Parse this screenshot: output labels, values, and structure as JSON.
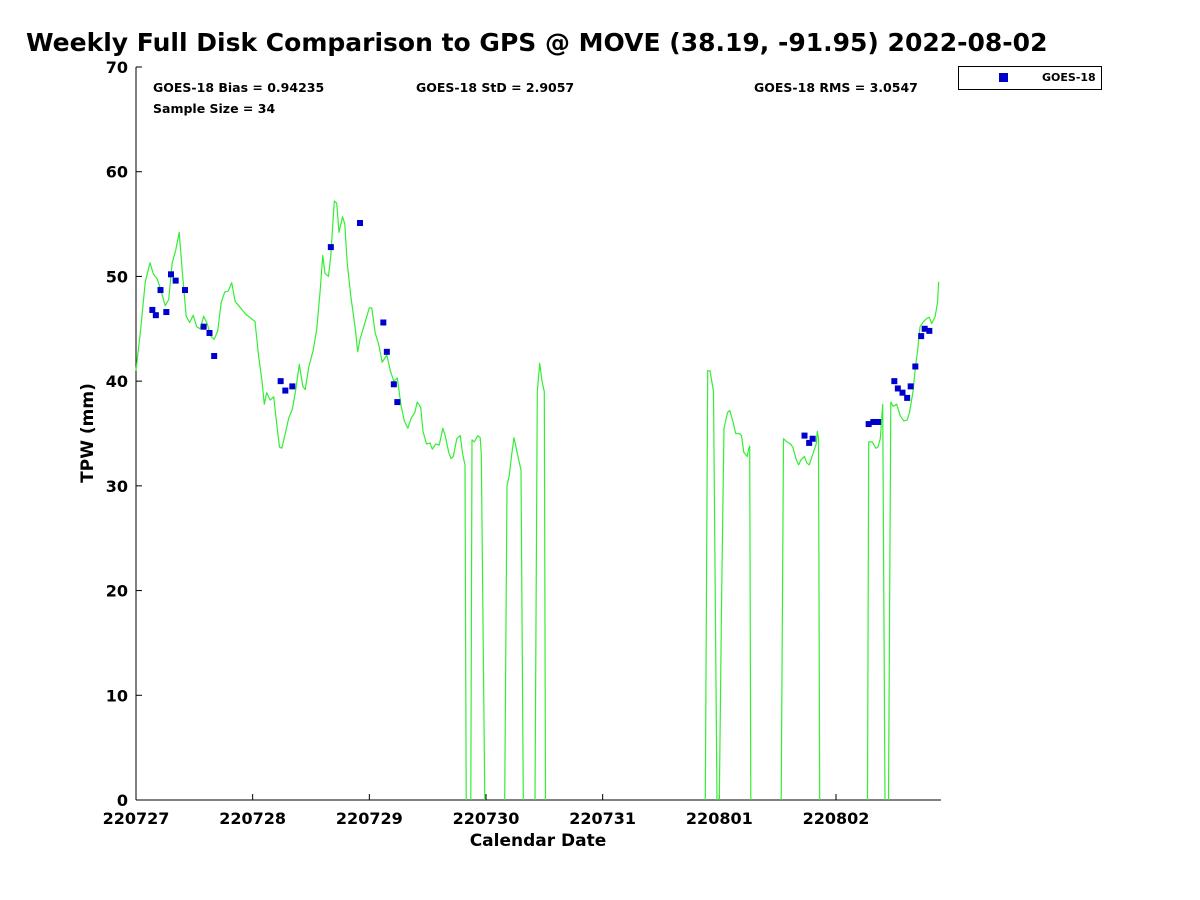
{
  "chart_data": {
    "type": "scatter",
    "title": "Weekly Full Disk Comparison to GPS @ MOVE (38.19, -91.95) 2022-08-02",
    "xlabel": "Calendar Date",
    "ylabel": "TPW (mm)",
    "xlim": [
      0,
      6.9
    ],
    "ylim": [
      0,
      70
    ],
    "x_ticks": [
      {
        "x": 0,
        "label": "220727"
      },
      {
        "x": 1,
        "label": "220728"
      },
      {
        "x": 2,
        "label": "220729"
      },
      {
        "x": 3,
        "label": "220730"
      },
      {
        "x": 4,
        "label": "220731"
      },
      {
        "x": 5,
        "label": "220801"
      },
      {
        "x": 6,
        "label": "220802"
      }
    ],
    "y_ticks": [
      0,
      10,
      20,
      30,
      40,
      50,
      60,
      70
    ],
    "stats": {
      "bias": "GOES-18 Bias = 0.94235",
      "std": "GOES-18 StD = 2.9057",
      "rms": "GOES-18 RMS = 3.0547",
      "sample": "Sample Size = 34"
    },
    "legend": {
      "position": "top-right, outside plot",
      "entries": [
        "GOES-18"
      ]
    },
    "colors": {
      "goes": "#0000cc",
      "gps": "#33ee33"
    },
    "series": [
      {
        "name": "GOES-18",
        "kind": "scatter",
        "points": [
          [
            0.14,
            46.8
          ],
          [
            0.17,
            46.3
          ],
          [
            0.21,
            48.7
          ],
          [
            0.26,
            46.6
          ],
          [
            0.3,
            50.2
          ],
          [
            0.34,
            49.6
          ],
          [
            0.42,
            48.7
          ],
          [
            0.58,
            45.2
          ],
          [
            0.63,
            44.6
          ],
          [
            0.67,
            42.4
          ],
          [
            1.24,
            40.0
          ],
          [
            1.28,
            39.1
          ],
          [
            1.34,
            39.5
          ],
          [
            1.67,
            52.8
          ],
          [
            1.92,
            55.1
          ],
          [
            2.12,
            45.6
          ],
          [
            2.15,
            42.8
          ],
          [
            2.21,
            39.7
          ],
          [
            2.24,
            38.0
          ],
          [
            5.73,
            34.8
          ],
          [
            5.77,
            34.1
          ],
          [
            5.8,
            34.5
          ],
          [
            6.28,
            35.9
          ],
          [
            6.32,
            36.1
          ],
          [
            6.36,
            36.1
          ],
          [
            6.5,
            40.0
          ],
          [
            6.53,
            39.3
          ],
          [
            6.57,
            38.9
          ],
          [
            6.61,
            38.4
          ],
          [
            6.64,
            39.5
          ],
          [
            6.68,
            41.4
          ],
          [
            6.73,
            44.3
          ],
          [
            6.76,
            45.0
          ],
          [
            6.8,
            44.8
          ]
        ]
      },
      {
        "kind": "line",
        "segments": [
          [
            [
              0.0,
              41.0
            ],
            [
              0.04,
              45.0
            ],
            [
              0.08,
              49.5
            ],
            [
              0.12,
              51.3
            ],
            [
              0.15,
              50.2
            ],
            [
              0.18,
              49.8
            ],
            [
              0.21,
              48.8
            ],
            [
              0.25,
              47.2
            ],
            [
              0.28,
              47.8
            ],
            [
              0.31,
              51.3
            ],
            [
              0.34,
              52.5
            ],
            [
              0.37,
              54.2
            ],
            [
              0.4,
              50.0
            ],
            [
              0.43,
              46.2
            ],
            [
              0.46,
              45.6
            ],
            [
              0.49,
              46.3
            ],
            [
              0.52,
              45.2
            ],
            [
              0.55,
              45.0
            ],
            [
              0.58,
              46.2
            ],
            [
              0.61,
              45.5
            ],
            [
              0.64,
              44.3
            ],
            [
              0.67,
              44.0
            ],
            [
              0.7,
              44.8
            ],
            [
              0.73,
              47.5
            ],
            [
              0.76,
              48.5
            ],
            [
              0.79,
              48.6
            ],
            [
              0.82,
              49.4
            ],
            [
              0.85,
              47.6
            ],
            [
              0.88,
              47.2
            ],
            [
              0.94,
              46.4
            ],
            [
              1.02,
              45.7
            ],
            [
              1.05,
              42.5
            ],
            [
              1.08,
              40.0
            ],
            [
              1.1,
              37.8
            ],
            [
              1.12,
              38.9
            ],
            [
              1.15,
              38.2
            ],
            [
              1.18,
              38.5
            ],
            [
              1.2,
              36.5
            ],
            [
              1.23,
              33.7
            ],
            [
              1.25,
              33.6
            ],
            [
              1.28,
              35.0
            ],
            [
              1.31,
              36.5
            ],
            [
              1.34,
              37.3
            ],
            [
              1.37,
              39.2
            ],
            [
              1.4,
              41.6
            ],
            [
              1.43,
              39.5
            ],
            [
              1.45,
              39.2
            ],
            [
              1.48,
              41.3
            ],
            [
              1.52,
              43.0
            ],
            [
              1.55,
              45.0
            ],
            [
              1.58,
              48.8
            ],
            [
              1.6,
              52.0
            ],
            [
              1.62,
              50.3
            ],
            [
              1.65,
              50.0
            ],
            [
              1.67,
              52.0
            ],
            [
              1.7,
              57.2
            ],
            [
              1.72,
              57.0
            ],
            [
              1.74,
              54.2
            ],
            [
              1.77,
              55.7
            ],
            [
              1.79,
              55.0
            ],
            [
              1.81,
              51.3
            ],
            [
              1.84,
              48.2
            ],
            [
              1.88,
              45.0
            ],
            [
              1.9,
              42.8
            ],
            [
              1.92,
              44.0
            ],
            [
              1.96,
              45.5
            ],
            [
              2.0,
              47.0
            ],
            [
              2.02,
              47.0
            ],
            [
              2.05,
              44.6
            ],
            [
              2.08,
              43.5
            ],
            [
              2.11,
              41.8
            ],
            [
              2.15,
              42.5
            ],
            [
              2.18,
              41.0
            ],
            [
              2.21,
              40.0
            ],
            [
              2.24,
              40.3
            ],
            [
              2.27,
              37.8
            ],
            [
              2.3,
              36.2
            ],
            [
              2.33,
              35.5
            ],
            [
              2.36,
              36.5
            ],
            [
              2.39,
              37.0
            ],
            [
              2.41,
              38.0
            ],
            [
              2.44,
              37.5
            ],
            [
              2.46,
              35.2
            ],
            [
              2.49,
              34.0
            ],
            [
              2.52,
              34.1
            ],
            [
              2.54,
              33.5
            ],
            [
              2.57,
              34.0
            ],
            [
              2.6,
              33.9
            ],
            [
              2.63,
              35.5
            ],
            [
              2.65,
              34.8
            ],
            [
              2.68,
              33.2
            ],
            [
              2.7,
              32.6
            ],
            [
              2.72,
              32.8
            ],
            [
              2.75,
              34.5
            ],
            [
              2.78,
              34.8
            ],
            [
              2.8,
              33.0
            ],
            [
              2.82,
              32.0
            ],
            [
              2.83,
              0.0
            ]
          ],
          [
            [
              2.87,
              0.0
            ],
            [
              2.88,
              34.4
            ],
            [
              2.9,
              34.2
            ],
            [
              2.93,
              34.8
            ],
            [
              2.95,
              34.6
            ],
            [
              2.96,
              33.0
            ],
            [
              2.99,
              0.0
            ]
          ],
          [
            [
              3.16,
              0.0
            ],
            [
              3.18,
              30.0
            ],
            [
              3.2,
              31.0
            ],
            [
              3.22,
              33.0
            ],
            [
              3.24,
              34.6
            ],
            [
              3.27,
              33.0
            ],
            [
              3.3,
              31.5
            ],
            [
              3.32,
              0.0
            ]
          ],
          [
            [
              3.42,
              0.0
            ],
            [
              3.44,
              39.0
            ],
            [
              3.46,
              41.7
            ],
            [
              3.48,
              40.0
            ],
            [
              3.5,
              39.0
            ],
            [
              3.51,
              0.0
            ]
          ],
          [
            [
              4.88,
              0.0
            ],
            [
              4.9,
              41.0
            ],
            [
              4.92,
              41.0
            ],
            [
              4.95,
              39.0
            ],
            [
              4.98,
              0.0
            ]
          ],
          [
            [
              5.0,
              0.0
            ],
            [
              5.02,
              20.0
            ],
            [
              5.04,
              35.5
            ],
            [
              5.07,
              37.0
            ],
            [
              5.09,
              37.2
            ],
            [
              5.12,
              36.0
            ],
            [
              5.14,
              35.0
            ],
            [
              5.17,
              35.0
            ],
            [
              5.19,
              34.8
            ],
            [
              5.21,
              33.2
            ],
            [
              5.24,
              32.8
            ],
            [
              5.25,
              33.5
            ],
            [
              5.26,
              33.8
            ],
            [
              5.27,
              0.0
            ]
          ],
          [
            [
              5.53,
              0.0
            ],
            [
              5.55,
              34.5
            ],
            [
              5.58,
              34.2
            ],
            [
              5.61,
              34.0
            ],
            [
              5.63,
              33.7
            ],
            [
              5.66,
              32.5
            ],
            [
              5.68,
              32.0
            ],
            [
              5.7,
              32.5
            ],
            [
              5.73,
              32.8
            ],
            [
              5.75,
              32.2
            ],
            [
              5.77,
              32.0
            ],
            [
              5.8,
              33.0
            ],
            [
              5.83,
              34.0
            ],
            [
              5.84,
              35.2
            ],
            [
              5.85,
              34.5
            ],
            [
              5.86,
              0.0
            ]
          ],
          [
            [
              6.27,
              0.0
            ],
            [
              6.28,
              34.2
            ],
            [
              6.31,
              34.2
            ],
            [
              6.34,
              33.6
            ],
            [
              6.36,
              33.7
            ],
            [
              6.38,
              34.5
            ],
            [
              6.4,
              37.8
            ],
            [
              6.42,
              0.0
            ]
          ],
          [
            [
              6.45,
              0.0
            ],
            [
              6.47,
              38.0
            ],
            [
              6.49,
              37.6
            ],
            [
              6.52,
              37.8
            ],
            [
              6.55,
              36.7
            ],
            [
              6.58,
              36.2
            ],
            [
              6.61,
              36.3
            ],
            [
              6.63,
              37.0
            ],
            [
              6.66,
              39.0
            ],
            [
              6.68,
              41.2
            ],
            [
              6.7,
              43.0
            ],
            [
              6.72,
              45.2
            ],
            [
              6.75,
              45.7
            ],
            [
              6.78,
              46.0
            ],
            [
              6.8,
              46.1
            ],
            [
              6.82,
              45.5
            ],
            [
              6.85,
              46.2
            ],
            [
              6.87,
              47.5
            ],
            [
              6.88,
              49.5
            ]
          ]
        ]
      }
    ]
  }
}
